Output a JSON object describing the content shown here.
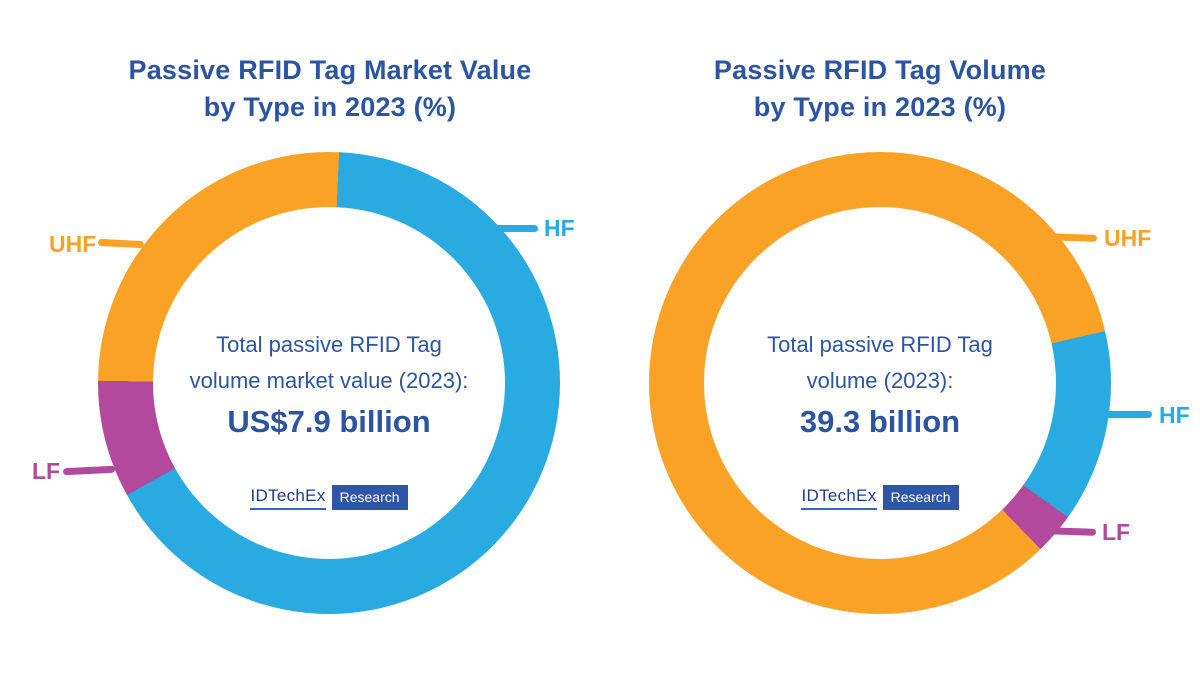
{
  "colors": {
    "title": "#2b55a2",
    "uhf": "#f9a226",
    "hf": "#29abe2",
    "lf": "#b3499d",
    "background": "#ffffff"
  },
  "brand": {
    "name": "IDTechEx",
    "badge": "Research",
    "name_color": "#1c3c8c",
    "underline_color": "#2c6bc4",
    "badge_bg": "#2e55a8",
    "badge_text_color": "#ffffff"
  },
  "chart_data": [
    {
      "type": "pie",
      "variant": "donut",
      "title": "Passive RFID Tag Market Value\nby Type in 2023 (%)",
      "units": "%",
      "center_text": "Total passive RFID Tag\nvolume market value (2023):",
      "center_value": "US$7.9 billion",
      "legend_position": "callout-labels",
      "slices": [
        {
          "label": "HF",
          "color": "#29abe2",
          "start_deg": 2.5,
          "end_deg": 241,
          "pct": 66.3
        },
        {
          "label": "LF",
          "color": "#b3499d",
          "start_deg": 241,
          "end_deg": 270.5,
          "pct": 8.2
        },
        {
          "label": "UHF",
          "color": "#f9a226",
          "start_deg": 270.5,
          "end_deg": 362.5,
          "pct": 25.5
        }
      ]
    },
    {
      "type": "pie",
      "variant": "donut",
      "title": "Passive RFID Tag Volume\nby Type in 2023 (%)",
      "units": "%",
      "center_text": "Total passive RFID Tag\nvolume (2023):",
      "center_value": "39.3 billion",
      "legend_position": "callout-labels",
      "slices": [
        {
          "label": "UHF",
          "color": "#f9a226",
          "start_deg": 136,
          "end_deg": 437,
          "pct": 83.6
        },
        {
          "label": "HF",
          "color": "#29abe2",
          "start_deg": 77,
          "end_deg": 125.5,
          "pct": 13.5
        },
        {
          "label": "LF",
          "color": "#b3499d",
          "start_deg": 125.5,
          "end_deg": 136,
          "pct": 2.9
        }
      ]
    }
  ]
}
